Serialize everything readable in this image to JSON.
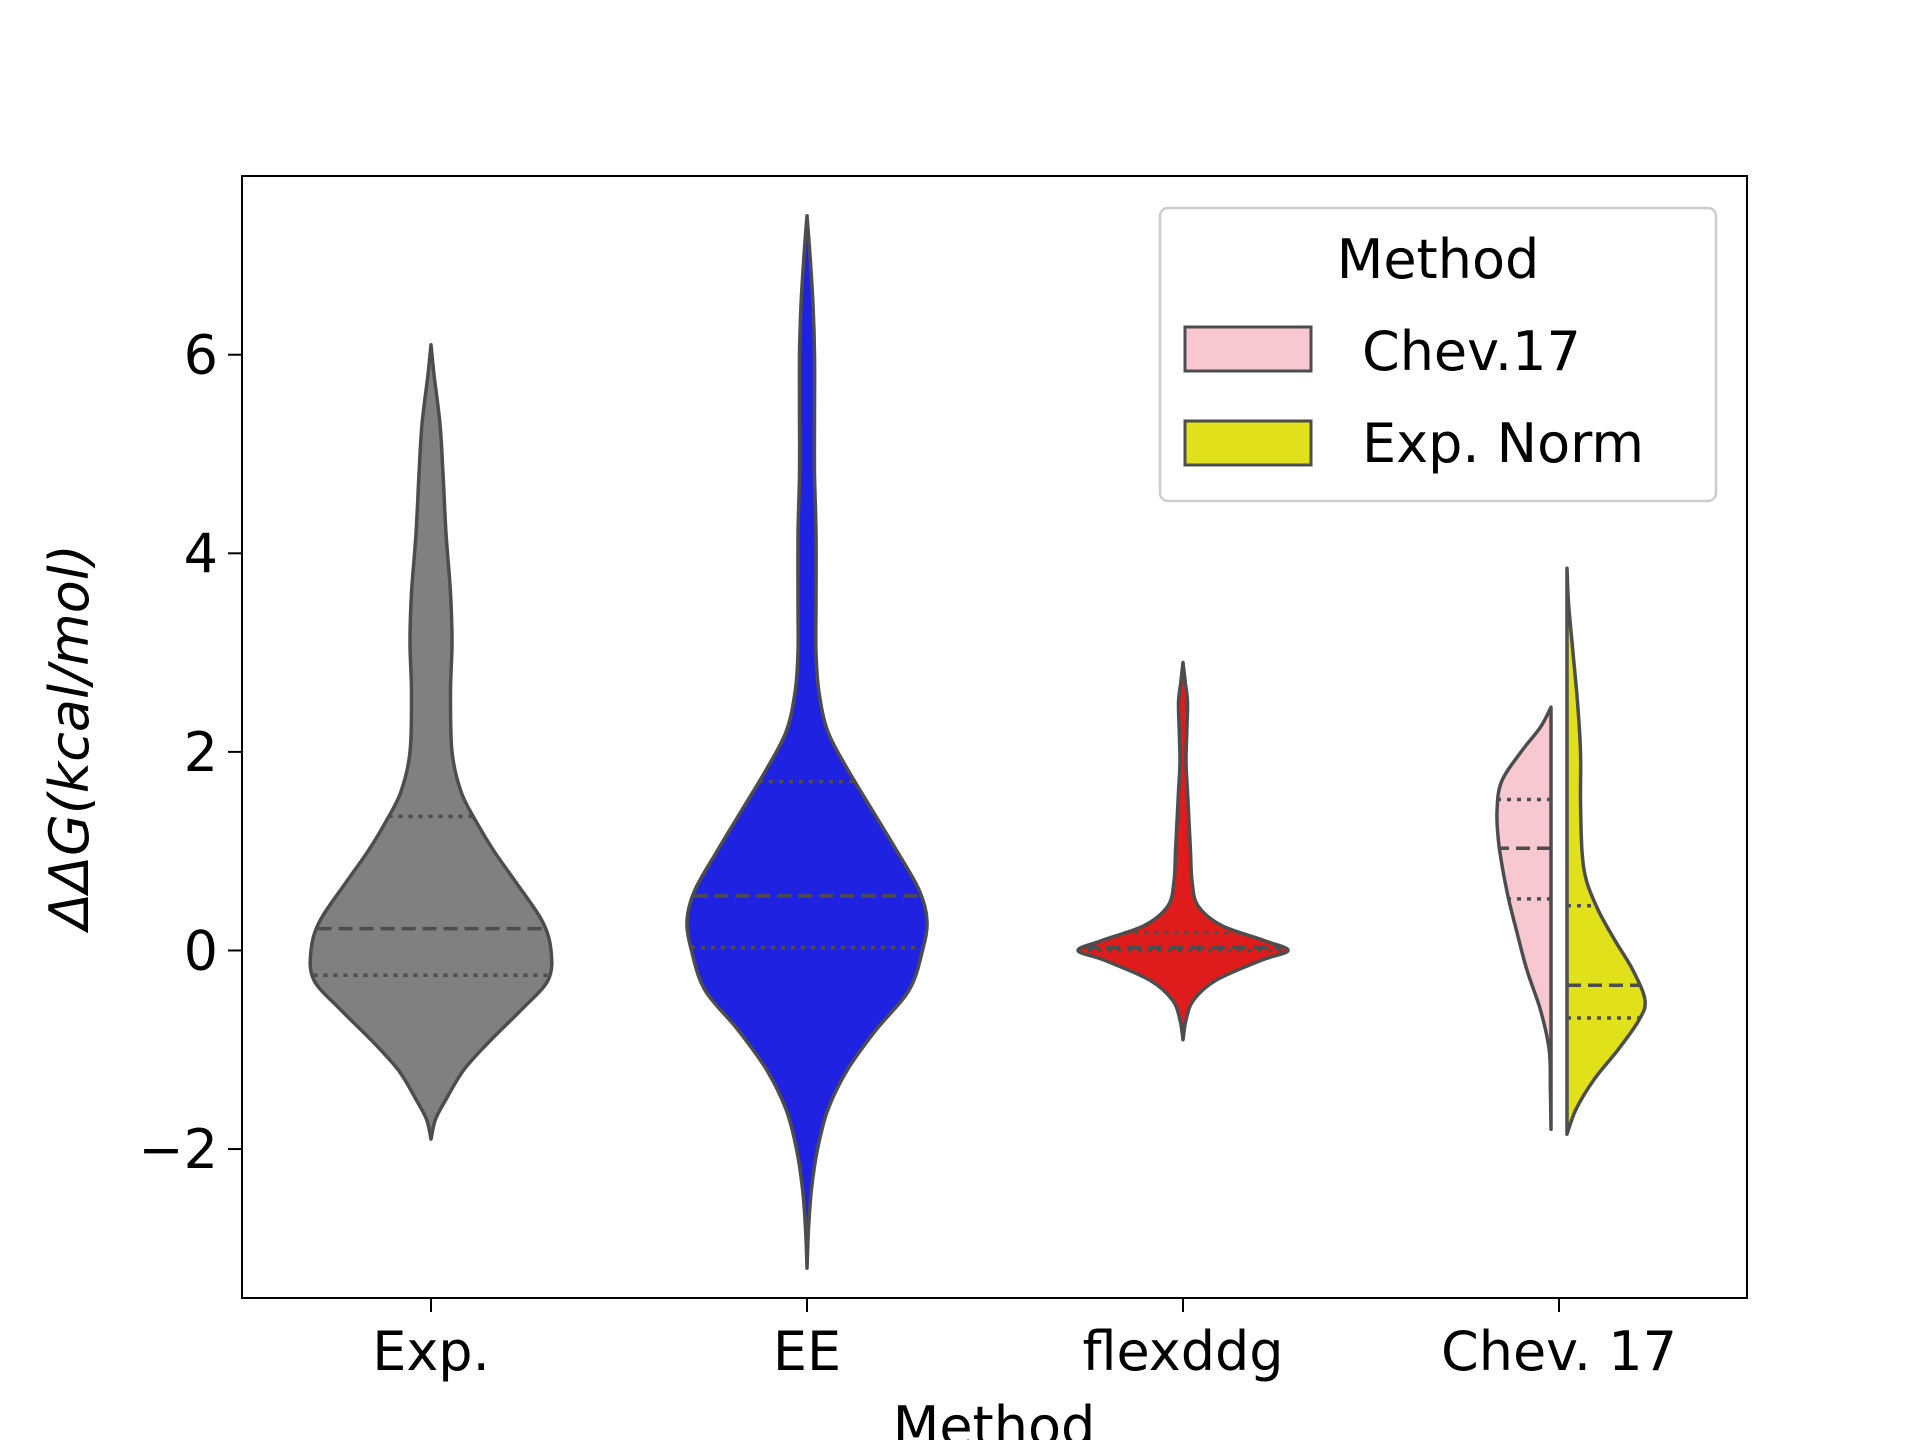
{
  "chart_data": {
    "type": "violin",
    "xlabel": "Method",
    "ylabel": "ΔΔG(kcal/mol)",
    "ylim": [
      -3.5,
      7.8
    ],
    "yticks": [
      -2,
      0,
      2,
      4,
      6
    ],
    "ytick_labels": [
      "−2",
      "0",
      "2",
      "4",
      "6"
    ],
    "categories": [
      "Exp.",
      "EE",
      "flexddg",
      "Chev. 17"
    ],
    "grid": false,
    "inner": "quartile",
    "violins": [
      {
        "category": "Exp.",
        "side": "both",
        "color": "#808080",
        "min": -1.9,
        "max": 6.1,
        "quartiles": [
          -0.25,
          0.22,
          1.35
        ],
        "profile": [
          [
            -1.9,
            0.0
          ],
          [
            -1.7,
            0.03
          ],
          [
            -1.5,
            0.1
          ],
          [
            -1.2,
            0.22
          ],
          [
            -0.9,
            0.4
          ],
          [
            -0.6,
            0.6
          ],
          [
            -0.3,
            0.78
          ],
          [
            0.0,
            0.8
          ],
          [
            0.3,
            0.74
          ],
          [
            0.7,
            0.56
          ],
          [
            1.0,
            0.42
          ],
          [
            1.3,
            0.3
          ],
          [
            1.6,
            0.2
          ],
          [
            2.0,
            0.14
          ],
          [
            2.6,
            0.13
          ],
          [
            3.1,
            0.14
          ],
          [
            3.6,
            0.13
          ],
          [
            4.2,
            0.1
          ],
          [
            4.8,
            0.08
          ],
          [
            5.3,
            0.06
          ],
          [
            5.8,
            0.02
          ],
          [
            6.1,
            0.0
          ]
        ]
      },
      {
        "category": "EE",
        "side": "both",
        "color": "#1f22e0",
        "min": -3.2,
        "max": 7.4,
        "quartiles": [
          0.03,
          0.55,
          1.7
        ],
        "profile": [
          [
            -3.2,
            0.0
          ],
          [
            -2.8,
            0.01
          ],
          [
            -2.4,
            0.03
          ],
          [
            -2.0,
            0.07
          ],
          [
            -1.6,
            0.14
          ],
          [
            -1.2,
            0.27
          ],
          [
            -0.8,
            0.46
          ],
          [
            -0.4,
            0.68
          ],
          [
            0.0,
            0.77
          ],
          [
            0.3,
            0.8
          ],
          [
            0.6,
            0.75
          ],
          [
            1.0,
            0.6
          ],
          [
            1.4,
            0.44
          ],
          [
            1.8,
            0.28
          ],
          [
            2.2,
            0.14
          ],
          [
            2.6,
            0.08
          ],
          [
            3.0,
            0.06
          ],
          [
            3.5,
            0.06
          ],
          [
            4.2,
            0.06
          ],
          [
            4.8,
            0.05
          ],
          [
            5.4,
            0.05
          ],
          [
            6.0,
            0.05
          ],
          [
            6.5,
            0.04
          ],
          [
            7.0,
            0.02
          ],
          [
            7.4,
            0.0
          ]
        ]
      },
      {
        "category": "flexddg",
        "side": "both",
        "color": "#e01b1b",
        "min": -0.9,
        "max": 2.9,
        "quartiles": [
          0.0,
          0.03,
          0.18
        ],
        "profile": [
          [
            -0.9,
            0.0
          ],
          [
            -0.7,
            0.02
          ],
          [
            -0.5,
            0.07
          ],
          [
            -0.3,
            0.22
          ],
          [
            -0.1,
            0.52
          ],
          [
            0.0,
            0.7
          ],
          [
            0.1,
            0.54
          ],
          [
            0.25,
            0.26
          ],
          [
            0.45,
            0.1
          ],
          [
            0.7,
            0.06
          ],
          [
            1.0,
            0.05
          ],
          [
            1.3,
            0.04
          ],
          [
            1.6,
            0.03
          ],
          [
            1.9,
            0.02
          ],
          [
            2.2,
            0.025
          ],
          [
            2.5,
            0.03
          ],
          [
            2.7,
            0.015
          ],
          [
            2.9,
            0.0
          ]
        ]
      },
      {
        "category": "Chev. 17",
        "side": "left",
        "color": "#f8c8d0",
        "legend": "Chev.17",
        "min": -1.8,
        "max": 2.45,
        "quartiles": [
          0.52,
          1.03,
          1.52
        ],
        "profile": [
          [
            -1.8,
            0.0
          ],
          [
            -1.4,
            0.004
          ],
          [
            -1.0,
            0.012
          ],
          [
            -0.6,
            0.07
          ],
          [
            -0.2,
            0.16
          ],
          [
            0.2,
            0.23
          ],
          [
            0.5,
            0.28
          ],
          [
            0.8,
            0.32
          ],
          [
            1.1,
            0.35
          ],
          [
            1.4,
            0.36
          ],
          [
            1.7,
            0.33
          ],
          [
            2.0,
            0.2
          ],
          [
            2.25,
            0.07
          ],
          [
            2.45,
            0.0
          ]
        ]
      },
      {
        "category": "Chev. 17",
        "side": "right",
        "color": "#e0e01b",
        "legend": "Exp. Norm",
        "min": -1.85,
        "max": 3.85,
        "quartiles": [
          -0.68,
          -0.35,
          0.45
        ],
        "profile": [
          [
            -1.85,
            0.0
          ],
          [
            -1.6,
            0.06
          ],
          [
            -1.3,
            0.18
          ],
          [
            -1.0,
            0.34
          ],
          [
            -0.7,
            0.48
          ],
          [
            -0.5,
            0.52
          ],
          [
            -0.2,
            0.44
          ],
          [
            0.1,
            0.32
          ],
          [
            0.4,
            0.21
          ],
          [
            0.7,
            0.13
          ],
          [
            1.0,
            0.1
          ],
          [
            1.5,
            0.09
          ],
          [
            2.0,
            0.09
          ],
          [
            2.5,
            0.07
          ],
          [
            3.0,
            0.04
          ],
          [
            3.5,
            0.01
          ],
          [
            3.85,
            0.0
          ]
        ]
      }
    ],
    "legend": {
      "title": "Method",
      "placement": "top-right",
      "entries": [
        {
          "label": "Chev.17",
          "color": "#f8c8d0"
        },
        {
          "label": "Exp. Norm",
          "color": "#e0e01b"
        }
      ]
    }
  }
}
